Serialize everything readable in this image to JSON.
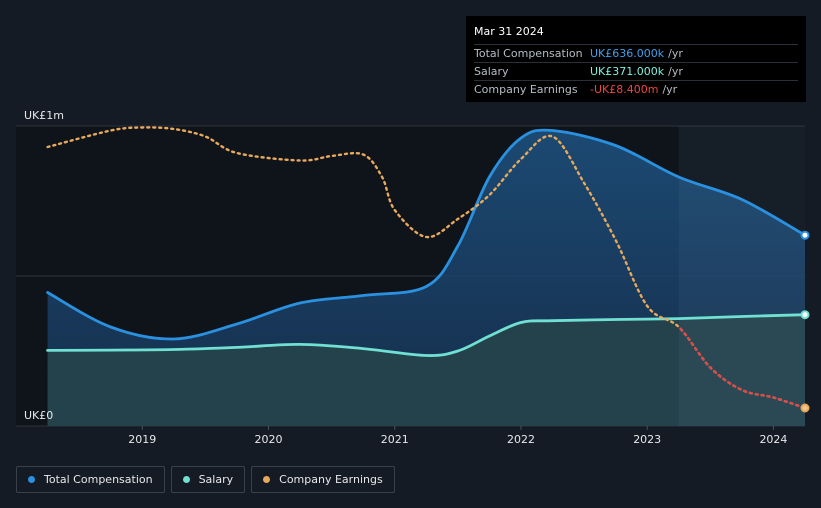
{
  "tooltip": {
    "date": "Mar 31 2024",
    "rows": [
      {
        "label": "Total Compensation",
        "value": "UK£636.000k",
        "unit": "/yr",
        "color": "#3ea0ea"
      },
      {
        "label": "Salary",
        "value": "UK£371.000k",
        "unit": "/yr",
        "color": "#7ff2de"
      },
      {
        "label": "Company Earnings",
        "value": "-UK£8.400m",
        "unit": "/yr",
        "color": "#ee4444"
      }
    ]
  },
  "legend": [
    {
      "label": "Total Compensation",
      "color": "#2a91e0"
    },
    {
      "label": "Salary",
      "color": "#6fe0d2"
    },
    {
      "label": "Company Earnings",
      "color": "#e9a95b"
    }
  ],
  "colors": {
    "background": "#151b24",
    "total": "#2a91e0",
    "salary": "#6fe0d2",
    "earnings": "#e9a95b",
    "earnings_negative": "#e04848"
  },
  "chart_data": {
    "type": "line",
    "title": "",
    "xlabel": "",
    "ylabel": "",
    "y_axis_labels": [
      {
        "value": 1000,
        "label": "UK£1m"
      },
      {
        "value": 0,
        "label": "UK£0"
      }
    ],
    "x_ticks": [
      {
        "value": 2019.0,
        "label": "2019"
      },
      {
        "value": 2020.0,
        "label": "2020"
      },
      {
        "value": 2021.0,
        "label": "2021"
      },
      {
        "value": 2022.0,
        "label": "2022"
      },
      {
        "value": 2023.0,
        "label": "2023"
      },
      {
        "value": 2024.0,
        "label": "2024"
      }
    ],
    "xlim": [
      2018.0,
      2024.25
    ],
    "ylim": [
      0,
      1000
    ],
    "forecast_start": 2023.25,
    "series": [
      {
        "name": "Total Compensation",
        "unit": "UK£k",
        "points": [
          [
            2018.25,
            445
          ],
          [
            2018.75,
            330
          ],
          [
            2019.25,
            290
          ],
          [
            2019.75,
            340
          ],
          [
            2020.25,
            410
          ],
          [
            2020.75,
            435
          ],
          [
            2021.25,
            465
          ],
          [
            2021.5,
            600
          ],
          [
            2021.75,
            830
          ],
          [
            2022.0,
            960
          ],
          [
            2022.25,
            985
          ],
          [
            2022.75,
            935
          ],
          [
            2023.25,
            830
          ],
          [
            2023.75,
            755
          ],
          [
            2024.25,
            636
          ]
        ]
      },
      {
        "name": "Salary",
        "unit": "UK£k",
        "points": [
          [
            2018.25,
            252
          ],
          [
            2018.75,
            253
          ],
          [
            2019.25,
            255
          ],
          [
            2019.75,
            262
          ],
          [
            2020.25,
            272
          ],
          [
            2020.75,
            258
          ],
          [
            2021.25,
            235
          ],
          [
            2021.5,
            250
          ],
          [
            2021.75,
            300
          ],
          [
            2022.0,
            345
          ],
          [
            2022.25,
            351
          ],
          [
            2022.75,
            355
          ],
          [
            2023.25,
            358
          ],
          [
            2023.75,
            365
          ],
          [
            2024.25,
            371
          ]
        ]
      },
      {
        "name": "Company Earnings",
        "unit": "relative scale",
        "points": [
          [
            2018.25,
            930
          ],
          [
            2018.75,
            985
          ],
          [
            2019.0,
            995
          ],
          [
            2019.25,
            990
          ],
          [
            2019.5,
            965
          ],
          [
            2019.75,
            910
          ],
          [
            2020.25,
            885
          ],
          [
            2020.5,
            900
          ],
          [
            2020.75,
            905
          ],
          [
            2020.9,
            830
          ],
          [
            2021.0,
            720
          ],
          [
            2021.25,
            630
          ],
          [
            2021.5,
            690
          ],
          [
            2021.75,
            770
          ],
          [
            2022.0,
            890
          ],
          [
            2022.25,
            965
          ],
          [
            2022.5,
            810
          ],
          [
            2022.75,
            620
          ],
          [
            2023.0,
            400
          ],
          [
            2023.25,
            330
          ],
          [
            2023.5,
            195
          ],
          [
            2023.75,
            120
          ],
          [
            2024.0,
            95
          ],
          [
            2024.25,
            60
          ]
        ]
      }
    ]
  }
}
